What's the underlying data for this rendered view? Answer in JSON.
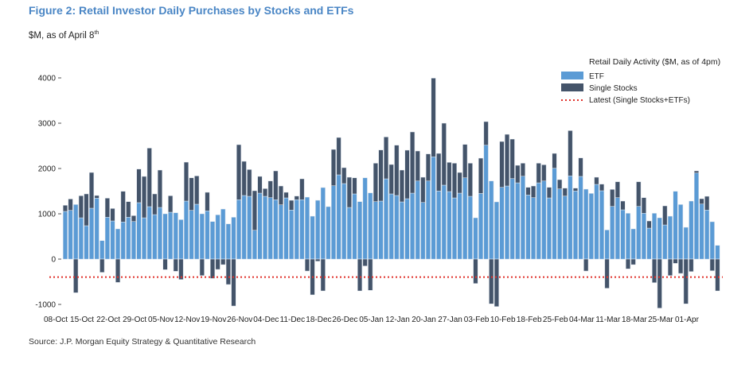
{
  "title": "Figure 2: Retail Investor Daily Purchases by Stocks and ETFs",
  "subtitle": "$M, as of April 8",
  "subtitle_sup": "th",
  "source": "Source: J.P. Morgan Equity Strategy & Quantitative Research",
  "colors": {
    "etf": "#5b9bd5",
    "single_stocks": "#44546a",
    "latest": "#e0302a",
    "title": "#4a86c5"
  },
  "chart_data": {
    "type": "bar",
    "stacked": true,
    "legend_title": "Retail Daily Activity ($M, as of 4pm)",
    "legend_position": "top-right",
    "ylim": [
      -1000,
      4000
    ],
    "yticks": [
      4000,
      3000,
      2000,
      1000,
      0,
      -1000
    ],
    "grid": false,
    "xtick_labels": [
      "08-Oct",
      "15-Oct",
      "22-Oct",
      "29-Oct",
      "05-Nov",
      "12-Nov",
      "19-Nov",
      "26-Nov",
      "04-Dec",
      "11-Dec",
      "18-Dec",
      "26-Dec",
      "05-Jan",
      "12-Jan",
      "20-Jan",
      "27-Jan",
      "03-Feb",
      "10-Feb",
      "18-Feb",
      "25-Feb",
      "04-Mar",
      "11-Mar",
      "18-Mar",
      "25-Mar",
      "01-Apr"
    ],
    "series": [
      {
        "name": "ETF",
        "values": [
          1053,
          1076,
          1205,
          912,
          737,
          1123,
          1345,
          409,
          924,
          842,
          667,
          819,
          924,
          830,
          1246,
          912,
          1158,
          982,
          1140,
          1000,
          1035,
          1023,
          871,
          1281,
          1076,
          1211,
          1000,
          1064,
          830,
          977,
          1105,
          778,
          924,
          1310,
          1404,
          1386,
          637,
          1456,
          1386,
          1357,
          1310,
          1199,
          1351,
          1082,
          1310,
          1310,
          1368,
          947,
          1298,
          1579,
          1158,
          1620,
          1860,
          1667,
          1140,
          1439,
          1269,
          1795,
          1462,
          1269,
          1281,
          1772,
          1439,
          1404,
          1263,
          1333,
          1456,
          1725,
          1251,
          1725,
          2257,
          1503,
          1632,
          1491,
          1351,
          1456,
          1795,
          1386,
          912,
          1450,
          2515,
          1725,
          1263,
          1585,
          1614,
          1778,
          1684,
          1830,
          1415,
          1357,
          1684,
          1725,
          1351,
          2006,
          1550,
          1392,
          1836,
          1503,
          1825,
          1544,
          1450,
          1649,
          1509,
          643,
          1164,
          1357,
          1088,
          1012,
          667,
          1164,
          1012,
          684,
          1012,
          912,
          754,
          947,
          1497,
          1205,
          702,
          1281,
          1901,
          1216,
          1082,
          825,
          304
        ]
      },
      {
        "name": "Single Stocks",
        "values": [
          135,
          251,
          -743,
          486,
          702,
          789,
          59,
          -292,
          421,
          275,
          -515,
          678,
          345,
          129,
          742,
          913,
          1292,
          457,
          825,
          -234,
          363,
          -269,
          -450,
          859,
          719,
          625,
          -363,
          410,
          -427,
          -228,
          -123,
          -561,
          -1035,
          1216,
          754,
          591,
          872,
          369,
          170,
          368,
          637,
          415,
          123,
          216,
          82,
          462,
          -263,
          -789,
          -47,
          -702,
          0,
          801,
          824,
          351,
          667,
          356,
          -702,
          -152,
          -690,
          848,
          1128,
          924,
          649,
          1111,
          702,
          1071,
          1351,
          661,
          556,
          597,
          1737,
          830,
          1368,
          644,
          766,
          456,
          737,
          731,
          -538,
          778,
          520,
          -988,
          -1047,
          1011,
          1140,
          871,
          386,
          287,
          170,
          257,
          433,
          357,
          234,
          327,
          204,
          175,
          1000,
          64,
          409,
          -263,
          0,
          158,
          146,
          -643,
          374,
          351,
          193,
          -216,
          -123,
          544,
          345,
          158,
          -520,
          -1082,
          421,
          -363,
          -94,
          -316,
          -988,
          -275,
          46,
          117,
          304,
          -257,
          -702
        ]
      }
    ],
    "latest_label": "Latest (Single Stocks+ETFs)",
    "latest_value": -398
  }
}
